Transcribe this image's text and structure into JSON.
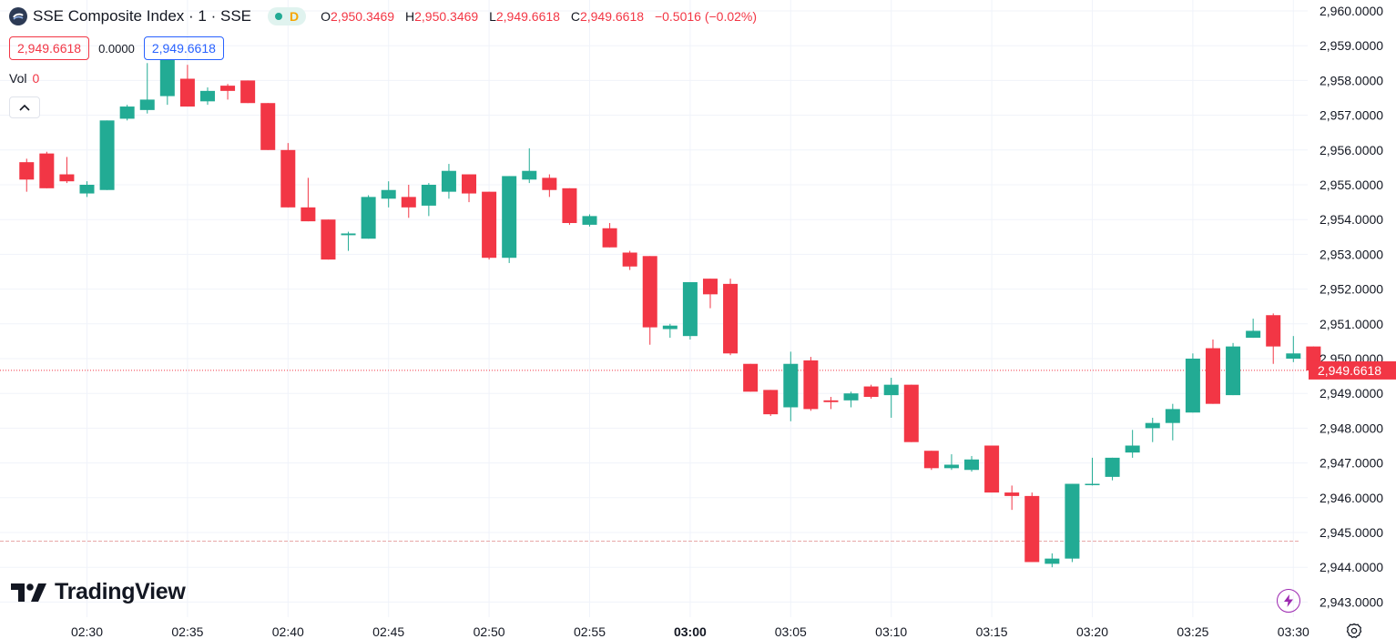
{
  "header": {
    "title": "SSE Composite Index · 1 · SSE",
    "interval_badge": "D",
    "ohlc": [
      {
        "label": "O",
        "value": "2,950.3469"
      },
      {
        "label": "H",
        "value": "2,950.3469"
      },
      {
        "label": "L",
        "value": "2,949.6618"
      },
      {
        "label": "C",
        "value": "2,949.6618"
      }
    ],
    "change": "−0.5016 (−0.02%)"
  },
  "order_boxes": {
    "sell": "2,949.6618",
    "spread": "0.0000",
    "buy": "2,949.6618"
  },
  "volume": {
    "label": "Vol",
    "value": "0"
  },
  "branding": {
    "logo_text": "TradingView"
  },
  "colors": {
    "up": "#22ab94",
    "down": "#f23645",
    "grid": "#f0f3fa",
    "text": "#131722"
  },
  "chart_data": {
    "type": "candlestick",
    "title": "SSE Composite Index · 1 · SSE",
    "ylim": [
      2942.75,
      2960.1
    ],
    "y_ticks": [
      "2,960.0000",
      "2,959.0000",
      "2,958.0000",
      "2,957.0000",
      "2,956.0000",
      "2,955.0000",
      "2,954.0000",
      "2,953.0000",
      "2,952.0000",
      "2,951.0000",
      "2,950.0000",
      "2,949.0000",
      "2,948.0000",
      "2,947.0000",
      "2,946.0000",
      "2,945.0000",
      "2,944.0000",
      "2,943.0000"
    ],
    "x_ticks": [
      {
        "label": "02:30",
        "minute": 150
      },
      {
        "label": "02:35",
        "minute": 155
      },
      {
        "label": "02:40",
        "minute": 160
      },
      {
        "label": "02:45",
        "minute": 165
      },
      {
        "label": "02:50",
        "minute": 170
      },
      {
        "label": "02:55",
        "minute": 175
      },
      {
        "label": "03:00",
        "minute": 180,
        "bold": true
      },
      {
        "label": "03:05",
        "minute": 185
      },
      {
        "label": "03:10",
        "minute": 190
      },
      {
        "label": "03:15",
        "minute": 195
      },
      {
        "label": "03:20",
        "minute": 200
      },
      {
        "label": "03:25",
        "minute": 205
      },
      {
        "label": "03:30",
        "minute": 210
      }
    ],
    "last_price": {
      "value": 2949.6618,
      "label": "2,949.6618"
    },
    "reference_line": 2944.75,
    "candles_start_minute": 147,
    "candles": [
      [
        2955.65,
        2955.75,
        2954.8,
        2955.15
      ],
      [
        2955.9,
        2955.95,
        2954.9,
        2954.9
      ],
      [
        2955.3,
        2955.8,
        2955.05,
        2955.1
      ],
      [
        2954.75,
        2955.1,
        2954.65,
        2955.0
      ],
      [
        2954.85,
        2956.85,
        2954.85,
        2956.85
      ],
      [
        2956.9,
        2957.3,
        2956.85,
        2957.25
      ],
      [
        2957.15,
        2958.5,
        2957.05,
        2957.45
      ],
      [
        2957.55,
        2958.6,
        2957.3,
        2958.6
      ],
      [
        2958.05,
        2958.45,
        2957.25,
        2957.25
      ],
      [
        2957.4,
        2957.8,
        2957.3,
        2957.7
      ],
      [
        2957.85,
        2957.9,
        2957.45,
        2957.7
      ],
      [
        2958.0,
        2958.0,
        2957.35,
        2957.35
      ],
      [
        2957.35,
        2957.35,
        2956.0,
        2956.0
      ],
      [
        2956.0,
        2956.2,
        2954.35,
        2954.35
      ],
      [
        2954.35,
        2955.2,
        2953.95,
        2953.95
      ],
      [
        2954.0,
        2954.0,
        2952.85,
        2952.85
      ],
      [
        2953.55,
        2953.65,
        2953.1,
        2953.6
      ],
      [
        2953.45,
        2954.7,
        2953.45,
        2954.65
      ],
      [
        2954.6,
        2955.1,
        2954.35,
        2954.85
      ],
      [
        2954.65,
        2955.0,
        2954.05,
        2954.35
      ],
      [
        2954.4,
        2955.05,
        2954.1,
        2955.0
      ],
      [
        2954.8,
        2955.6,
        2954.6,
        2955.4
      ],
      [
        2955.3,
        2955.3,
        2954.5,
        2954.75
      ],
      [
        2954.8,
        2954.8,
        2952.85,
        2952.9
      ],
      [
        2952.9,
        2955.25,
        2952.75,
        2955.25
      ],
      [
        2955.15,
        2956.05,
        2955.05,
        2955.4
      ],
      [
        2955.2,
        2955.3,
        2954.65,
        2954.85
      ],
      [
        2954.9,
        2954.9,
        2953.85,
        2953.9
      ],
      [
        2953.85,
        2954.15,
        2953.8,
        2954.1
      ],
      [
        2953.75,
        2953.9,
        2953.2,
        2953.2
      ],
      [
        2953.05,
        2953.1,
        2952.55,
        2952.65
      ],
      [
        2952.95,
        2952.95,
        2950.4,
        2950.9
      ],
      [
        2950.85,
        2951.0,
        2950.6,
        2950.95
      ],
      [
        2950.65,
        2952.2,
        2950.55,
        2952.2
      ],
      [
        2952.3,
        2952.3,
        2951.45,
        2951.85
      ],
      [
        2952.15,
        2952.3,
        2950.1,
        2950.15
      ],
      [
        2949.85,
        2949.85,
        2949.05,
        2949.05
      ],
      [
        2949.1,
        2949.1,
        2948.35,
        2948.4
      ],
      [
        2948.6,
        2950.2,
        2948.2,
        2949.85
      ],
      [
        2949.95,
        2950.05,
        2948.5,
        2948.55
      ],
      [
        2948.8,
        2948.9,
        2948.55,
        2948.75
      ],
      [
        2948.8,
        2949.05,
        2948.6,
        2949.0
      ],
      [
        2949.2,
        2949.25,
        2948.85,
        2948.9
      ],
      [
        2948.95,
        2949.45,
        2948.3,
        2949.25
      ],
      [
        2949.25,
        2949.25,
        2947.6,
        2947.6
      ],
      [
        2947.35,
        2947.35,
        2946.8,
        2946.85
      ],
      [
        2946.85,
        2947.25,
        2946.8,
        2946.95
      ],
      [
        2946.8,
        2947.2,
        2946.75,
        2947.1
      ],
      [
        2947.5,
        2947.5,
        2946.15,
        2946.15
      ],
      [
        2946.15,
        2946.35,
        2945.65,
        2946.05
      ],
      [
        2946.05,
        2946.15,
        2944.15,
        2944.15
      ],
      [
        2944.1,
        2944.4,
        2944.0,
        2944.25
      ],
      [
        2944.25,
        2946.4,
        2944.15,
        2946.4
      ],
      [
        2946.4,
        2947.15,
        2946.35,
        2946.4
      ],
      [
        2946.6,
        2947.15,
        2946.5,
        2947.15
      ],
      [
        2947.3,
        2947.95,
        2947.15,
        2947.5
      ],
      [
        2948.0,
        2948.3,
        2947.6,
        2948.15
      ],
      [
        2948.15,
        2948.7,
        2947.65,
        2948.55
      ],
      [
        2948.45,
        2950.15,
        2948.45,
        2950.0
      ],
      [
        2950.3,
        2950.55,
        2948.7,
        2948.7
      ],
      [
        2948.95,
        2950.45,
        2948.95,
        2950.35
      ],
      [
        2950.6,
        2951.15,
        2950.6,
        2950.8
      ],
      [
        2951.25,
        2951.3,
        2949.85,
        2950.35
      ],
      [
        2950.0,
        2950.65,
        2949.9,
        2950.15
      ],
      [
        2950.35,
        2950.35,
        2949.66,
        2949.66
      ]
    ]
  }
}
